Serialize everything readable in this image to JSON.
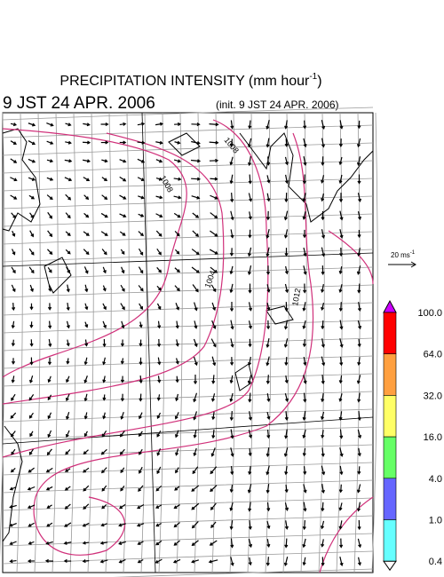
{
  "header": {
    "title": "PRECIPITATION INTENSITY (mm hour",
    "title_exponent": "-1",
    "title_close": ")",
    "valid_time": "9 JST 24 APR. 2006",
    "init_time": "(init. 9 JST 24 APR. 2006)"
  },
  "map": {
    "contour_labels": [
      "1008",
      "1008",
      "1004",
      "1012"
    ],
    "contour_color": "#d0307a"
  },
  "scale": {
    "label": "20 ms",
    "exponent": "-1"
  },
  "colorbar": {
    "levels": [
      "100.0",
      "64.0",
      "32.0",
      "16.0",
      "4.0",
      "1.0",
      "0.4"
    ],
    "colors": [
      "#cc00ff",
      "#ff0000",
      "#ffa040",
      "#ffff66",
      "#66ff66",
      "#6666ff",
      "#66ffff",
      "#ffffff"
    ]
  }
}
